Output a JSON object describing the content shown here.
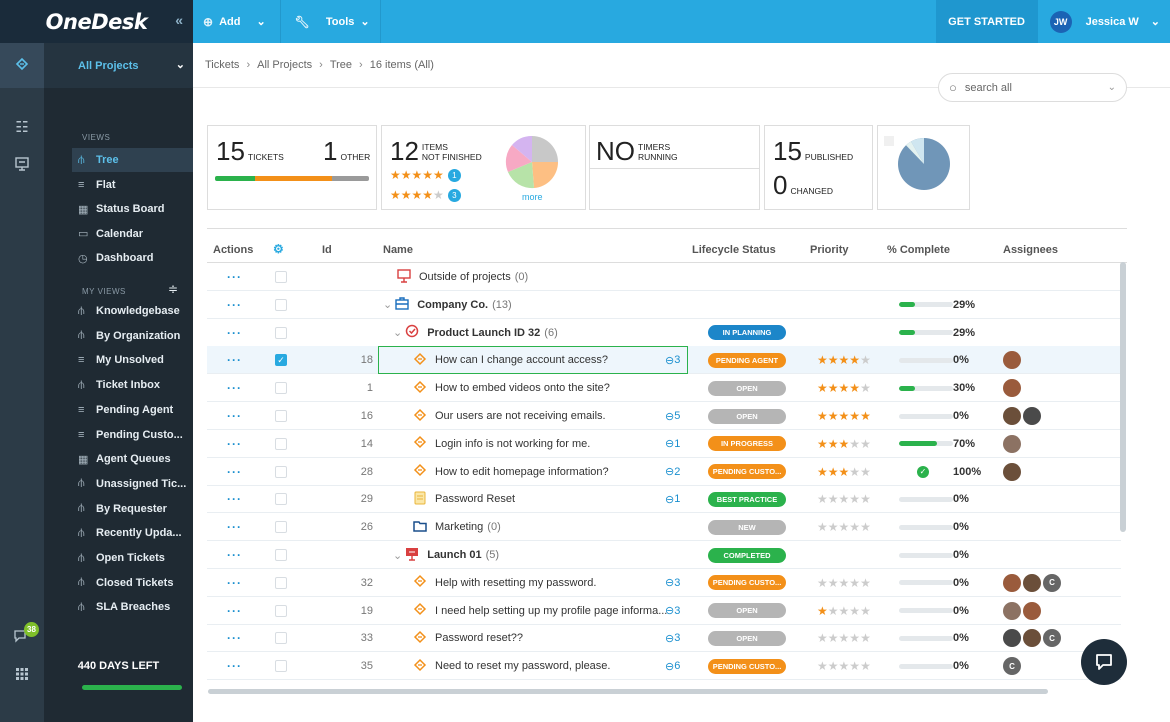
{
  "app": {
    "logo": "OneDesk",
    "collapse_icon": "«",
    "add_label": "Add",
    "tools_label": "Tools",
    "get_started": "GET STARTED",
    "user_initials": "JW",
    "user_name": "Jessica W"
  },
  "rail": {
    "notification_count": "38"
  },
  "sidebar": {
    "project": "All Projects",
    "views_label": "VIEWS",
    "my_views_label": "MY VIEWS",
    "views": [
      {
        "label": "Tree",
        "icon": "tree-icon",
        "active": true
      },
      {
        "label": "Flat",
        "icon": "list-icon"
      },
      {
        "label": "Status Board",
        "icon": "board-icon"
      },
      {
        "label": "Calendar",
        "icon": "calendar-icon"
      },
      {
        "label": "Dashboard",
        "icon": "dashboard-icon"
      }
    ],
    "my_views": [
      {
        "label": "Knowledgebase",
        "icon": "tree-icon"
      },
      {
        "label": "By Organization",
        "icon": "tree-icon"
      },
      {
        "label": "My Unsolved",
        "icon": "list-icon"
      },
      {
        "label": "Ticket Inbox",
        "icon": "tree-icon"
      },
      {
        "label": "Pending Agent",
        "icon": "list-icon"
      },
      {
        "label": "Pending Custo...",
        "icon": "list-icon"
      },
      {
        "label": "Agent Queues",
        "icon": "board-icon"
      },
      {
        "label": "Unassigned Tic...",
        "icon": "tree-icon"
      },
      {
        "label": "By Requester",
        "icon": "tree-icon"
      },
      {
        "label": "Recently Upda...",
        "icon": "tree-icon"
      },
      {
        "label": "Open Tickets",
        "icon": "tree-icon"
      },
      {
        "label": "Closed Tickets",
        "icon": "tree-icon"
      },
      {
        "label": "SLA Breaches",
        "icon": "tree-icon"
      }
    ],
    "days_left": "440 DAYS LEFT"
  },
  "breadcrumb": [
    "Tickets",
    "All Projects",
    "Tree",
    "16 items (All)"
  ],
  "search": {
    "placeholder": "search all"
  },
  "cards": {
    "tickets_count": "15",
    "tickets_label": "TICKETS",
    "other_count": "1",
    "other_label": "OTHER",
    "items_count": "12",
    "items_label_1": "ITEMS",
    "items_label_2": "NOT FINISHED",
    "rating_5_count": "1",
    "rating_4_count": "3",
    "more_label": "more",
    "timers_big": "NO",
    "timers_label_1": "TIMERS",
    "timers_label_2": "RUNNING",
    "published_count": "15",
    "published_label": "PUBLISHED",
    "changed_count": "0",
    "changed_label": "CHANGED"
  },
  "table": {
    "headers": {
      "actions": "Actions",
      "id": "Id",
      "name": "Name",
      "lifecycle": "Lifecycle Status",
      "priority": "Priority",
      "complete": "% Complete",
      "assignees": "Assignees"
    },
    "rows": [
      {
        "indent": 0,
        "icon": "project-icon",
        "name": "Outside of projects",
        "count": "(0)",
        "id": "",
        "status": "",
        "stars": null,
        "pct": "",
        "bar": null,
        "assignees": []
      },
      {
        "indent": 0,
        "caret": true,
        "icon": "company-icon",
        "name": "Company Co.",
        "count": "(13)",
        "bold": true,
        "id": "",
        "status": "",
        "stars": null,
        "pct": "29%",
        "bar": 29,
        "assignees": []
      },
      {
        "indent": 1,
        "caret": true,
        "icon": "target-icon",
        "name": "Product Launch ID 32",
        "count": "(6)",
        "bold": true,
        "id": "",
        "status": "IN PLANNING",
        "scolor": "#1c86c9",
        "stars": null,
        "pct": "29%",
        "bar": 29,
        "assignees": []
      },
      {
        "indent": 2,
        "icon": "ticket-icon",
        "name": "How can I change account access?",
        "count": "",
        "id": "18",
        "comments": "3",
        "status": "PENDING AGENT",
        "scolor": "#f39019",
        "stars": 4,
        "pct": "0%",
        "bar": 0,
        "assignees": [
          "a1"
        ],
        "selected": true,
        "checked": true
      },
      {
        "indent": 2,
        "icon": "ticket-icon",
        "name": "How to embed videos onto the site?",
        "count": "",
        "id": "1",
        "status": "OPEN",
        "scolor": "#b5b5b5",
        "stars": 4,
        "pct": "30%",
        "bar": 30,
        "assignees": [
          "a1"
        ]
      },
      {
        "indent": 2,
        "icon": "ticket-icon",
        "name": "Our users are not receiving emails.",
        "count": "",
        "id": "16",
        "comments": "5",
        "status": "OPEN",
        "scolor": "#b5b5b5",
        "stars": 5,
        "pct": "0%",
        "bar": 0,
        "assignees": [
          "a2",
          "a3"
        ]
      },
      {
        "indent": 2,
        "icon": "ticket-icon",
        "name": "Login info is not working for me.",
        "count": "",
        "id": "14",
        "comments": "1",
        "status": "IN PROGRESS",
        "scolor": "#f39019",
        "stars": 3,
        "pct": "70%",
        "bar": 70,
        "assignees": [
          "a4"
        ]
      },
      {
        "indent": 2,
        "icon": "ticket-icon",
        "name": "How to edit homepage information?",
        "count": "",
        "id": "28",
        "comments": "2",
        "status": "PENDING CUSTO...",
        "scolor": "#f39019",
        "stars": 3,
        "pct": "100%",
        "bar": 100,
        "done": true,
        "assignees": [
          "a2"
        ]
      },
      {
        "indent": 2,
        "icon": "article-icon",
        "name": "Password Reset",
        "count": "",
        "id": "29",
        "comments": "1",
        "status": "BEST PRACTICE",
        "scolor": "#2bb24c",
        "stars": 0,
        "pct": "0%",
        "bar": 0,
        "assignees": []
      },
      {
        "indent": 2,
        "icon": "folder-icon",
        "name": "Marketing",
        "count": "(0)",
        "id": "26",
        "status": "NEW",
        "scolor": "#b5b5b5",
        "stars": 0,
        "pct": "0%",
        "bar": 0,
        "assignees": []
      },
      {
        "indent": 1,
        "caret": true,
        "icon": "launch-icon",
        "name": "Launch 01",
        "count": "(5)",
        "bold": true,
        "id": "",
        "status": "COMPLETED",
        "scolor": "#2bb24c",
        "stars": null,
        "pct": "0%",
        "bar": 0,
        "assignees": []
      },
      {
        "indent": 2,
        "icon": "ticket-icon",
        "name": "Help with resetting my password.",
        "count": "",
        "id": "32",
        "comments": "3",
        "status": "PENDING CUSTO...",
        "scolor": "#f39019",
        "stars": 0,
        "pct": "0%",
        "bar": 0,
        "assignees": [
          "a1",
          "a2",
          "c"
        ]
      },
      {
        "indent": 2,
        "icon": "ticket-icon",
        "name": "I need help setting up my profile page informa...",
        "count": "",
        "id": "19",
        "comments": "3",
        "status": "OPEN",
        "scolor": "#b5b5b5",
        "stars": 1,
        "pct": "0%",
        "bar": 0,
        "assignees": [
          "a4",
          "a1"
        ]
      },
      {
        "indent": 2,
        "icon": "ticket-icon",
        "name": "Password reset??",
        "count": "",
        "id": "33",
        "comments": "3",
        "status": "OPEN",
        "scolor": "#b5b5b5",
        "stars": 0,
        "pct": "0%",
        "bar": 0,
        "assignees": [
          "a3",
          "a2",
          "c"
        ]
      },
      {
        "indent": 2,
        "icon": "ticket-icon",
        "name": "Need to reset my password, please.",
        "count": "",
        "id": "35",
        "comments": "6",
        "status": "PENDING CUSTO...",
        "scolor": "#f39019",
        "stars": 0,
        "pct": "0%",
        "bar": 0,
        "assignees": [
          "c"
        ]
      }
    ]
  },
  "avatars": {
    "a1": {
      "color": "#9a5b3c",
      "initial": ""
    },
    "a2": {
      "color": "#6b4f3a",
      "initial": ""
    },
    "a3": {
      "color": "#4a4a4a",
      "initial": ""
    },
    "a4": {
      "color": "#8c7263",
      "initial": ""
    },
    "c": {
      "color": "#666666",
      "initial": "C"
    }
  },
  "colors": {
    "accent": "#28a9e0",
    "dark": "#1f2a33",
    "green": "#2bb24c",
    "orange": "#f39019",
    "star": "#f39019",
    "star_off": "#cccccc"
  }
}
